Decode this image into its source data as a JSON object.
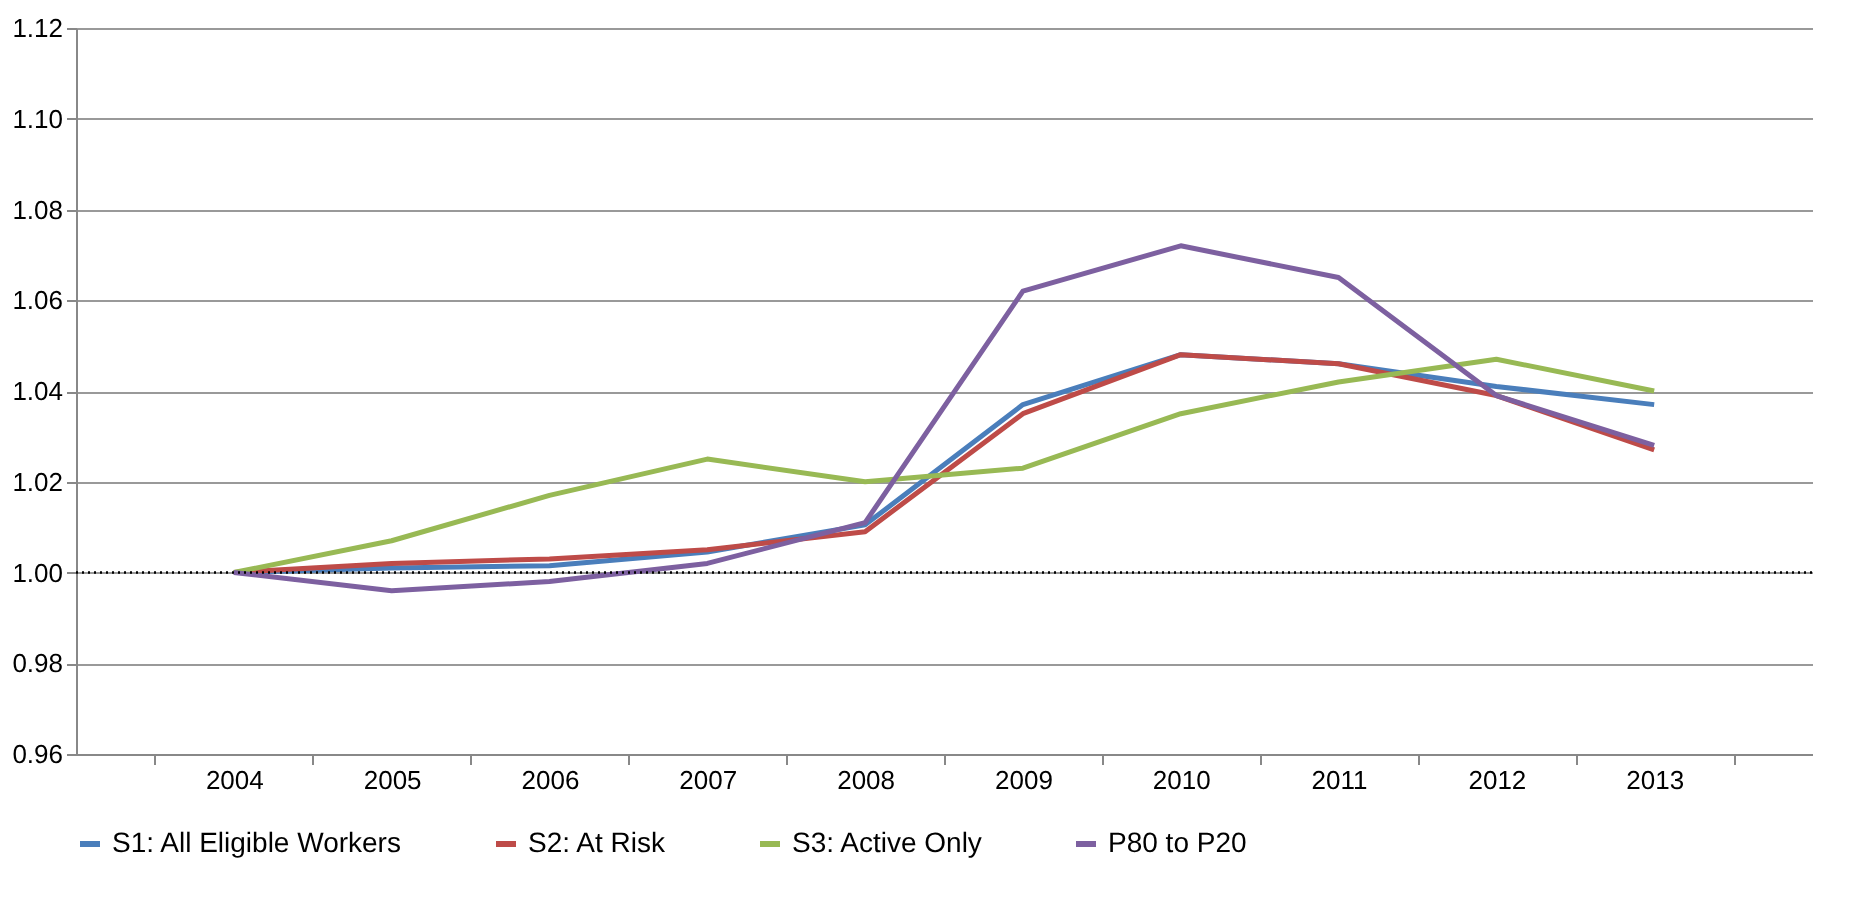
{
  "chart_data": {
    "type": "line",
    "categories": [
      "2004",
      "2005",
      "2006",
      "2007",
      "2008",
      "2009",
      "2010",
      "2011",
      "2012",
      "2013"
    ],
    "series": [
      {
        "name": "S1: All Eligible Workers",
        "color": "#4a7ebb",
        "values": [
          1.0,
          1.001,
          1.0015,
          1.0045,
          1.0105,
          1.037,
          1.048,
          1.046,
          1.041,
          1.037
        ]
      },
      {
        "name": "S2: At Risk",
        "color": "#be4b48",
        "values": [
          1.0,
          1.002,
          1.003,
          1.005,
          1.009,
          1.035,
          1.048,
          1.046,
          1.039,
          1.027
        ]
      },
      {
        "name": "S3: Active Only",
        "color": "#98b954",
        "values": [
          1.0,
          1.007,
          1.017,
          1.025,
          1.02,
          1.023,
          1.035,
          1.042,
          1.047,
          1.04
        ]
      },
      {
        "name": "P80 to P20",
        "color": "#7d60a0",
        "values": [
          1.0,
          0.996,
          0.998,
          1.002,
          1.011,
          1.062,
          1.072,
          1.065,
          1.039,
          1.028
        ]
      }
    ],
    "ylim": [
      0.96,
      1.12
    ],
    "yticks": [
      {
        "value": 0.96,
        "label": "0.96"
      },
      {
        "value": 0.98,
        "label": "0.98"
      },
      {
        "value": 1.0,
        "label": "1.00"
      },
      {
        "value": 1.02,
        "label": "1.02"
      },
      {
        "value": 1.04,
        "label": "1.04"
      },
      {
        "value": 1.06,
        "label": "1.06"
      },
      {
        "value": 1.08,
        "label": "1.08"
      },
      {
        "value": 1.1,
        "label": "1.10"
      },
      {
        "value": 1.12,
        "label": "1.12"
      }
    ],
    "ref_lines": [
      {
        "axis": "y",
        "value": 1.0,
        "color": "#000000",
        "line_style": "dotted"
      }
    ],
    "grid": "y",
    "legend": "bottom",
    "marker": "none",
    "line_style": "solid"
  }
}
